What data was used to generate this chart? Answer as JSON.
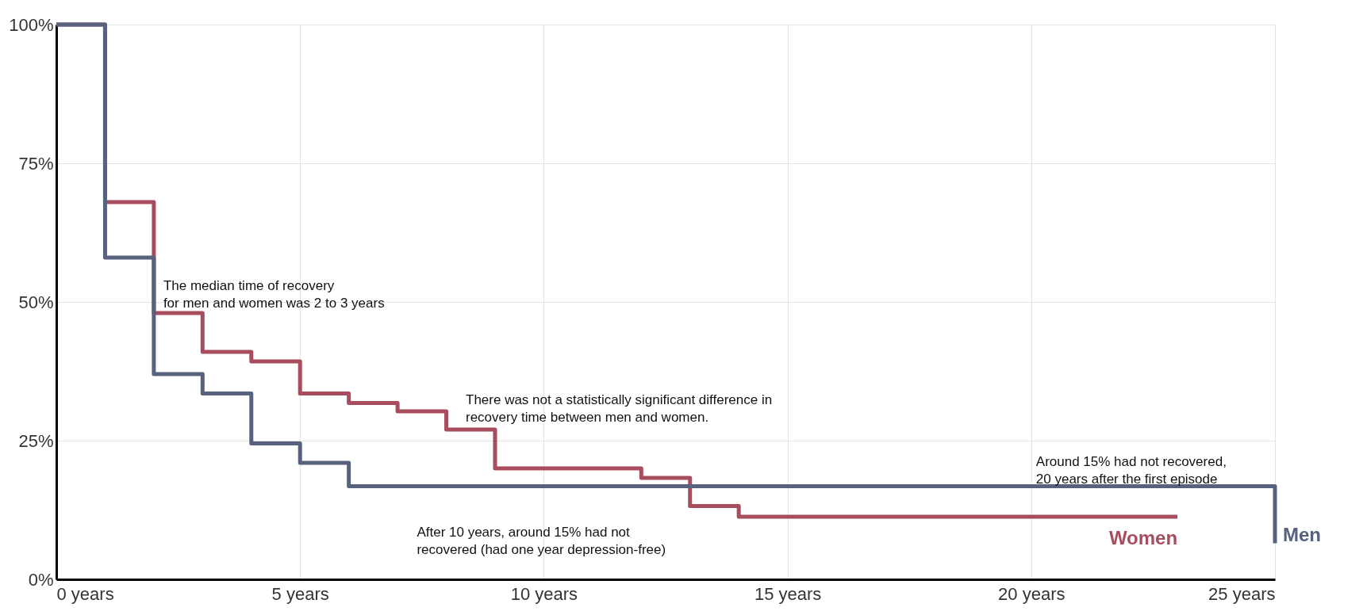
{
  "chart_data": {
    "type": "step",
    "series": [
      {
        "name": "Women",
        "color": "#a84d5e",
        "x": [
          0,
          1,
          2,
          3,
          4,
          5,
          6,
          7,
          8,
          9,
          12,
          13,
          14,
          23
        ],
        "values": [
          100,
          68,
          48,
          41,
          39.3,
          33.5,
          31.8,
          30.3,
          27,
          20,
          18.3,
          13.2,
          11.3,
          11.3
        ]
      },
      {
        "name": "Men",
        "color": "#56627e",
        "x": [
          0,
          1,
          2,
          3,
          4,
          5,
          6,
          25
        ],
        "values": [
          100,
          58,
          37,
          33.5,
          24.5,
          21,
          16.8,
          6.5
        ]
      }
    ],
    "xlim": [
      0,
      25
    ],
    "xticks": [
      {
        "value": 0,
        "label": "0 years"
      },
      {
        "value": 5,
        "label": "5 years"
      },
      {
        "value": 10,
        "label": "10 years"
      },
      {
        "value": 15,
        "label": "15 years"
      },
      {
        "value": 20,
        "label": "20 years"
      },
      {
        "value": 25,
        "label": "25 years"
      }
    ],
    "ylim": [
      0,
      100
    ],
    "yticks": [
      {
        "value": 0,
        "label": "0%"
      },
      {
        "value": 25,
        "label": "25%"
      },
      {
        "value": 50,
        "label": "50%"
      },
      {
        "value": 75,
        "label": "75%"
      },
      {
        "value": 100,
        "label": "100%"
      }
    ],
    "grid": true,
    "line_style": "solid",
    "annotations": [
      {
        "text": "The median time of recovery\nfor men and women was 2 to 3 years",
        "x": 2,
        "y": 48
      },
      "There was not a statistically significant difference in\nrecovery time between men and women.",
      {
        "text": "After 10 years, around 15% had not\nrecovered (had one year depression-free)",
        "x": 10,
        "y": 16.8
      },
      {
        "text": "Around 15% had not recovered,\n20 years after the first episode",
        "x": 20,
        "y": 16.8
      }
    ]
  }
}
